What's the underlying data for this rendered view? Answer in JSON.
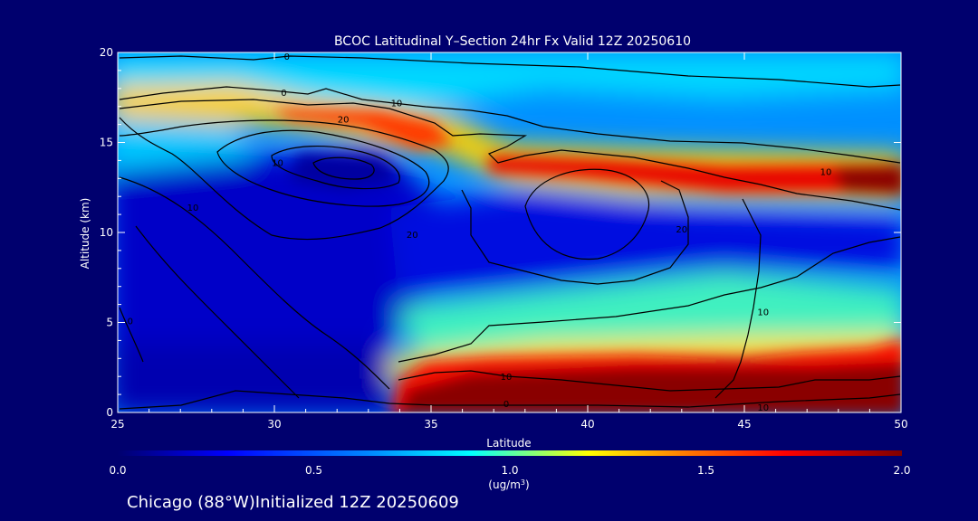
{
  "chart_data": {
    "type": "heatmap",
    "title": "BCOC Latitudinal Y–Section 24hr  Fx Valid 12Z 20250610",
    "xlabel": "Latitude",
    "ylabel": "Altitude (km)",
    "xlim": [
      25,
      50
    ],
    "ylim": [
      0,
      20
    ],
    "x_ticks": [
      "25",
      "30",
      "35",
      "40",
      "45",
      "50"
    ],
    "y_ticks": [
      "0",
      "5",
      "10",
      "15",
      "20"
    ],
    "colorbar": {
      "min": 0.0,
      "max": 2.0,
      "tick_labels": [
        "0.0",
        "0.5",
        "1.0",
        "1.5",
        "2.0"
      ],
      "unit_label": "(ug/m",
      "unit_sup": "3",
      "unit_close": ")",
      "colors": [
        "#00006e",
        "#0000ff",
        "#0090ff",
        "#00ffff",
        "#ffff00",
        "#ff7f00",
        "#ff0000",
        "#7f0000"
      ]
    },
    "contour_labels": [
      {
        "text": "0",
        "lat": 30.4,
        "alt": 19.8
      },
      {
        "text": "0",
        "lat": 30.3,
        "alt": 17.8
      },
      {
        "text": "10",
        "lat": 33.9,
        "alt": 17.2
      },
      {
        "text": "20",
        "lat": 32.2,
        "alt": 16.3
      },
      {
        "text": "10",
        "lat": 30.1,
        "alt": 13.9
      },
      {
        "text": "10",
        "lat": 27.4,
        "alt": 11.4
      },
      {
        "text": "20",
        "lat": 34.4,
        "alt": 9.9
      },
      {
        "text": "20",
        "lat": 43.0,
        "alt": 10.2
      },
      {
        "text": "10",
        "lat": 47.6,
        "alt": 13.4
      },
      {
        "text": "10",
        "lat": 45.6,
        "alt": 5.6
      },
      {
        "text": "10",
        "lat": 37.4,
        "alt": 2.0
      },
      {
        "text": "0",
        "lat": 37.4,
        "alt": 0.5
      },
      {
        "text": "10",
        "lat": 45.6,
        "alt": 0.3
      },
      {
        "text": "0",
        "lat": 25.4,
        "alt": 5.1
      }
    ]
  },
  "footer": {
    "location_text": "Chicago (88°W)Initialized 12Z 20250609"
  }
}
